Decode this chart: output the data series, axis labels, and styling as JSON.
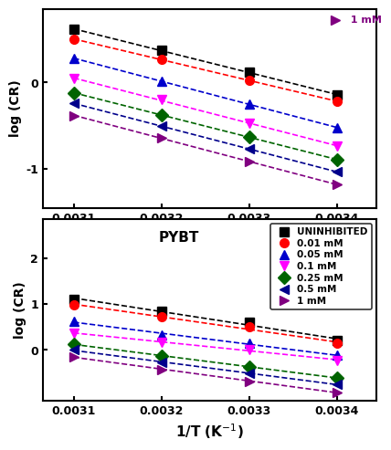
{
  "top_panel": {
    "x_data": [
      0.0031,
      0.0032,
      0.0033,
      0.0034
    ],
    "series": [
      {
        "label": "UNINHIBITED",
        "color": "#000000",
        "marker": "s",
        "y": [
          0.62,
          0.37,
          0.12,
          -0.14
        ]
      },
      {
        "label": "0.01 mM",
        "color": "#ff0000",
        "marker": "o",
        "y": [
          0.5,
          0.27,
          0.03,
          -0.22
        ]
      },
      {
        "label": "0.05 mM",
        "color": "#0000cc",
        "marker": "^",
        "y": [
          0.28,
          0.02,
          -0.25,
          -0.52
        ]
      },
      {
        "label": "0.1 mM",
        "color": "#ff00ff",
        "marker": "v",
        "y": [
          0.05,
          -0.2,
          -0.47,
          -0.73
        ]
      },
      {
        "label": "0.25 mM",
        "color": "#006400",
        "marker": "D",
        "y": [
          -0.12,
          -0.37,
          -0.63,
          -0.89
        ]
      },
      {
        "label": "0.5 mM",
        "color": "#00008b",
        "marker": "<",
        "y": [
          -0.24,
          -0.5,
          -0.77,
          -1.03
        ]
      },
      {
        "label": "1 mM",
        "color": "#800080",
        "marker": ">",
        "y": [
          -0.38,
          -0.64,
          -0.91,
          -1.18
        ]
      }
    ],
    "ylabel": "log (CR)",
    "xlim": [
      0.003065,
      0.003445
    ],
    "ylim": [
      -1.45,
      0.85
    ],
    "yticks": [
      -1,
      0
    ],
    "xticks": [
      0.0031,
      0.0032,
      0.0033,
      0.0034
    ]
  },
  "bottom_panel": {
    "x_data": [
      0.0031,
      0.0032,
      0.0033,
      0.0034
    ],
    "series": [
      {
        "label": "UNINHIBITED",
        "color": "#000000",
        "marker": "s",
        "y": [
          1.1,
          0.85,
          0.6,
          0.2
        ]
      },
      {
        "label": "0.01 mM",
        "color": "#ff0000",
        "marker": "o",
        "y": [
          0.98,
          0.72,
          0.5,
          0.14
        ]
      },
      {
        "label": "0.05 mM",
        "color": "#0000cc",
        "marker": "^",
        "y": [
          0.62,
          0.33,
          0.15,
          -0.12
        ]
      },
      {
        "label": "0.1 mM",
        "color": "#ff00ff",
        "marker": "v",
        "y": [
          0.37,
          0.17,
          0.0,
          -0.22
        ]
      },
      {
        "label": "0.25 mM",
        "color": "#006400",
        "marker": "D",
        "y": [
          0.13,
          -0.13,
          -0.37,
          -0.6
        ]
      },
      {
        "label": "0.5 mM",
        "color": "#00008b",
        "marker": "<",
        "y": [
          0.0,
          -0.27,
          -0.5,
          -0.75
        ]
      },
      {
        "label": "1 mM",
        "color": "#800080",
        "marker": ">",
        "y": [
          -0.15,
          -0.42,
          -0.68,
          -0.92
        ]
      }
    ],
    "ylabel": "log (CR)",
    "label_text": "PYBT",
    "xlim": [
      0.003065,
      0.003445
    ],
    "ylim": [
      -1.1,
      2.85
    ],
    "yticks": [
      0,
      1,
      2
    ],
    "xticks": [
      0.0031,
      0.0032,
      0.0033,
      0.0034
    ],
    "legend_entries": [
      {
        "label": "UNINHIBITED",
        "color": "#000000",
        "marker": "s"
      },
      {
        "label": "0.01 mM",
        "color": "#ff0000",
        "marker": "o"
      },
      {
        "label": "0.05 mM",
        "color": "#0000cc",
        "marker": "^"
      },
      {
        "label": "0.1 mM",
        "color": "#ff00ff",
        "marker": "v"
      },
      {
        "label": "0.25 mM",
        "color": "#006400",
        "marker": "D"
      },
      {
        "label": "0.5 mM",
        "color": "#00008b",
        "marker": "<"
      },
      {
        "label": "1 mM",
        "color": "#800080",
        "marker": ">"
      }
    ]
  },
  "xlabel": "1/T (K$^{-1}$)",
  "top_legend_label": "1 mM",
  "top_legend_color": "#800080",
  "top_legend_marker": ">",
  "figure_bg": "#ffffff"
}
